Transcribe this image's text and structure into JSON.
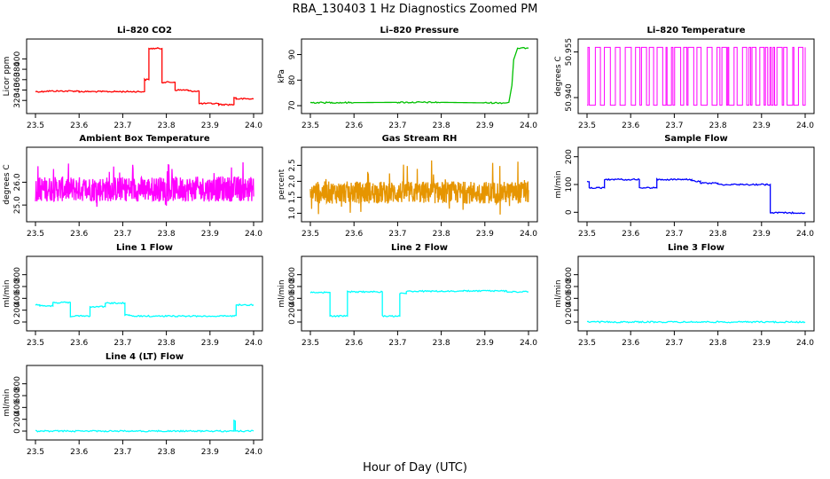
{
  "figure": {
    "title": "RBA_130403  1 Hz Diagnostics Zoomed PM",
    "xlabel": "Hour of Day (UTC)"
  },
  "chart_data": [
    {
      "id": "co2",
      "type": "line",
      "title": "Li–820 CO2",
      "ylabel": "Licor ppm",
      "color": "#ff0000",
      "xlim": [
        23.5,
        24.0
      ],
      "xticks": [
        "23.5",
        "23.6",
        "23.7",
        "23.8",
        "23.9",
        "24.0"
      ],
      "ylim": [
        305,
        428
      ],
      "yticks": [
        "320",
        "340",
        "360",
        "380",
        "400"
      ],
      "series": [
        {
          "x": [
            23.5,
            23.52,
            23.52,
            23.6,
            23.6,
            23.75,
            23.75,
            23.76,
            23.76,
            23.79,
            23.79,
            23.82,
            23.82,
            23.85,
            23.85,
            23.875,
            23.875,
            23.92,
            23.92,
            23.955,
            23.955,
            23.96,
            23.96,
            24.0
          ],
          "y": [
            337,
            337,
            338,
            338,
            337,
            337,
            360,
            360,
            420,
            420,
            355,
            355,
            340,
            340,
            338,
            338,
            314,
            314,
            312,
            312,
            325,
            325,
            323,
            323
          ]
        }
      ]
    },
    {
      "id": "pressure",
      "type": "line",
      "title": "Li–820 Pressure",
      "ylabel": "kPa",
      "color": "#00c000",
      "xlim": [
        23.5,
        24.0
      ],
      "xticks": [
        "23.5",
        "23.6",
        "23.7",
        "23.8",
        "23.9",
        "24.0"
      ],
      "ylim": [
        69,
        94
      ],
      "yticks": [
        "70",
        "80",
        "90"
      ],
      "series": [
        {
          "x": [
            23.5,
            23.6,
            23.7,
            23.8,
            23.9,
            23.95,
            23.955,
            23.962,
            23.966,
            23.975,
            24.0
          ],
          "y": [
            71.2,
            71.2,
            71.3,
            71.3,
            71.1,
            71.1,
            71.3,
            78,
            88,
            92.5,
            92.5
          ]
        }
      ]
    },
    {
      "id": "licor_temp",
      "type": "line",
      "title": "Li–820 Temperature",
      "ylabel": "degrees C",
      "color": "#ff00ff",
      "xlim": [
        23.5,
        24.0
      ],
      "xticks": [
        "23.5",
        "23.6",
        "23.7",
        "23.8",
        "23.9",
        "24.0"
      ],
      "ylim": [
        50.9365,
        50.9575
      ],
      "yticks": [
        "50.940",
        "50.955"
      ],
      "series": [
        {
          "levels": [
            50.9375,
            50.9565
          ],
          "toggle": true,
          "from": 23.5,
          "to": 24.0
        }
      ]
    },
    {
      "id": "ambient_temp",
      "type": "line",
      "title": "Ambient Box Temperature",
      "ylabel": "degrees C",
      "color": "#ff00ff",
      "xlim": [
        23.5,
        24.0
      ],
      "xticks": [
        "23.5",
        "23.6",
        "23.7",
        "23.8",
        "23.9",
        "24.0"
      ],
      "ylim": [
        24.5,
        27.3
      ],
      "yticks": [
        "25.0",
        "26.0"
      ],
      "series": [
        {
          "center": 25.7,
          "amplitude": 0.55,
          "spikes": 1.0,
          "from": 23.5,
          "to": 24.0
        }
      ]
    },
    {
      "id": "rh",
      "type": "line",
      "title": "Gas Stream RH",
      "ylabel": "percent",
      "color": "#e69500",
      "xlim": [
        23.5,
        24.0
      ],
      "xticks": [
        "23.5",
        "23.6",
        "23.7",
        "23.8",
        "23.9",
        "24.0"
      ],
      "ylim": [
        0.9,
        2.9
      ],
      "yticks": [
        "1.0",
        "1.5",
        "2.0",
        "2.5"
      ],
      "series": [
        {
          "center": 1.65,
          "amplitude": 0.35,
          "spikes": 0.9,
          "from": 23.5,
          "to": 24.0
        }
      ]
    },
    {
      "id": "sample_flow",
      "type": "line",
      "title": "Sample Flow",
      "ylabel": "ml/min",
      "color": "#0000ff",
      "xlim": [
        23.5,
        24.0
      ],
      "xticks": [
        "23.5",
        "23.6",
        "23.7",
        "23.8",
        "23.9",
        "24.0"
      ],
      "ylim": [
        -15,
        215
      ],
      "yticks": [
        "0",
        "100",
        "200"
      ],
      "series": [
        {
          "x": [
            23.5,
            23.505,
            23.505,
            23.54,
            23.54,
            23.62,
            23.62,
            23.66,
            23.66,
            23.74,
            23.74,
            23.76,
            23.76,
            23.8,
            23.8,
            23.91,
            23.91,
            23.92,
            23.92,
            24.0
          ],
          "y": [
            110,
            110,
            88,
            88,
            118,
            118,
            88,
            88,
            118,
            118,
            112,
            112,
            105,
            105,
            100,
            100,
            100,
            100,
            -2,
            -2
          ]
        }
      ]
    },
    {
      "id": "line1",
      "type": "line",
      "title": "Line 1 Flow",
      "ylabel": "ml/min",
      "color": "#00ffff",
      "xlim": [
        23.5,
        24.0
      ],
      "xticks": [
        "23.5",
        "23.6",
        "23.7",
        "23.8",
        "23.9",
        "24.0"
      ],
      "ylim": [
        -60,
        1020
      ],
      "yticks": [
        "0",
        "200",
        "400",
        "600",
        "800"
      ],
      "series": [
        {
          "x": [
            23.5,
            23.51,
            23.51,
            23.54,
            23.54,
            23.58,
            23.58,
            23.625,
            23.625,
            23.66,
            23.66,
            23.705,
            23.705,
            23.715,
            23.715,
            23.955,
            23.955,
            23.96,
            23.96,
            24.0
          ],
          "y": [
            290,
            290,
            270,
            270,
            330,
            330,
            100,
            100,
            260,
            260,
            320,
            320,
            120,
            120,
            100,
            100,
            110,
            110,
            290,
            290
          ]
        }
      ]
    },
    {
      "id": "line2",
      "type": "line",
      "title": "Line 2 Flow",
      "ylabel": "ml/min",
      "color": "#00ffff",
      "xlim": [
        23.5,
        24.0
      ],
      "xticks": [
        "23.5",
        "23.6",
        "23.7",
        "23.8",
        "23.9",
        "24.0"
      ],
      "ylim": [
        -60,
        1020
      ],
      "yticks": [
        "0",
        "200",
        "400",
        "600",
        "800"
      ],
      "series": [
        {
          "x": [
            23.5,
            23.545,
            23.545,
            23.585,
            23.585,
            23.665,
            23.665,
            23.705,
            23.705,
            23.72,
            23.72,
            23.85,
            23.85,
            23.95,
            23.95,
            24.0
          ],
          "y": [
            500,
            500,
            100,
            100,
            510,
            510,
            100,
            100,
            480,
            480,
            520,
            520,
            525,
            525,
            510,
            510
          ]
        }
      ]
    },
    {
      "id": "line3",
      "type": "line",
      "title": "Line 3 Flow",
      "ylabel": "ml/min",
      "color": "#00ffff",
      "xlim": [
        23.5,
        24.0
      ],
      "xticks": [
        "23.5",
        "23.6",
        "23.7",
        "23.8",
        "23.9",
        "24.0"
      ],
      "ylim": [
        -60,
        1020
      ],
      "yticks": [
        "0",
        "200",
        "400",
        "600",
        "800"
      ],
      "series": [
        {
          "x": [
            23.5,
            24.0
          ],
          "y": [
            0,
            0
          ]
        }
      ]
    },
    {
      "id": "line4",
      "type": "line",
      "title": "Line 4 (LT) Flow",
      "ylabel": "ml/min",
      "color": "#00ffff",
      "xlim": [
        23.5,
        24.0
      ],
      "xticks": [
        "23.5",
        "23.6",
        "23.7",
        "23.8",
        "23.9",
        "24.0"
      ],
      "ylim": [
        -60,
        1020
      ],
      "yticks": [
        "0",
        "200",
        "400",
        "600",
        "800"
      ],
      "series": [
        {
          "x": [
            23.5,
            23.955,
            23.955,
            23.958,
            23.958,
            24.0
          ],
          "y": [
            0,
            0,
            170,
            170,
            0,
            0
          ]
        }
      ]
    }
  ]
}
